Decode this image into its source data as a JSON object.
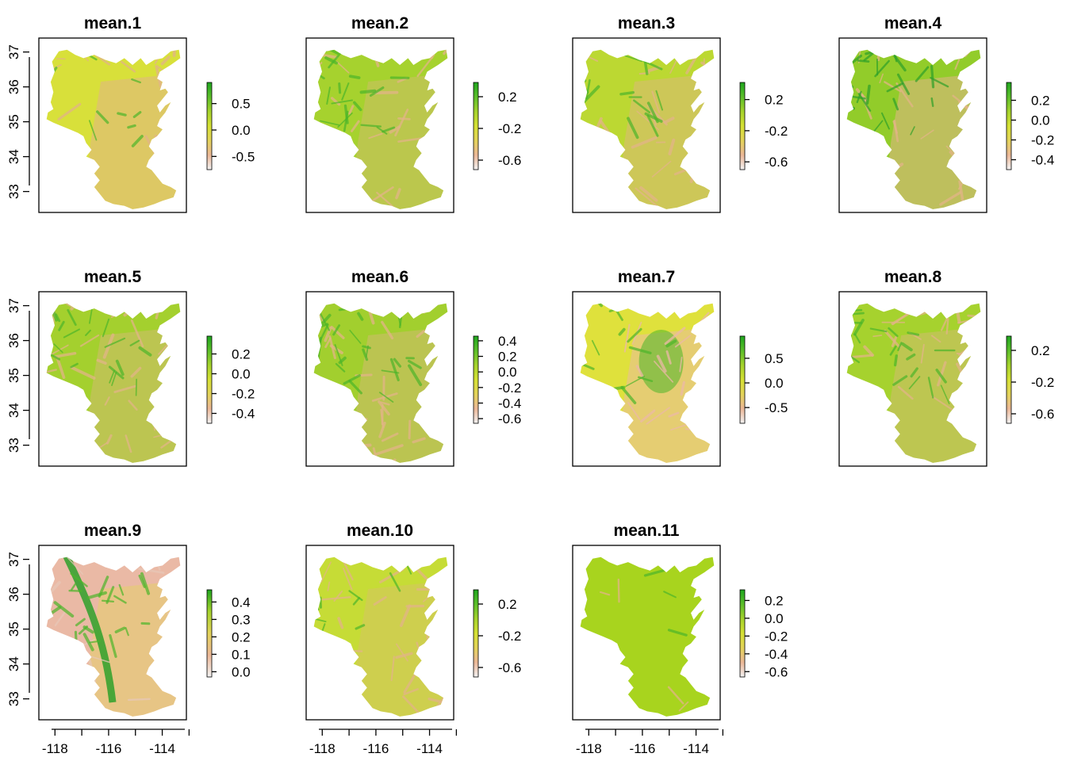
{
  "chart_data": {
    "type": "heatmap",
    "panel_layout": "3 rows x 4 columns",
    "shared_y_axis": {
      "ticks": [
        33,
        34,
        35,
        36,
        37
      ],
      "range": [
        32.4,
        37.4
      ]
    },
    "shared_x_axis": {
      "ticks": [
        -118,
        -116,
        -114
      ],
      "range": [
        -118.6,
        -113.1
      ]
    },
    "panels": [
      {
        "title": "mean.1",
        "legend_ticks": [
          "0.5",
          "0.0",
          "-0.5"
        ],
        "legend_range": [
          -0.75,
          0.9
        ],
        "tick_values": [
          0.5,
          0.0,
          -0.5
        ],
        "base_color": "#d8e03a",
        "tone": "mostly yellow, tan in east"
      },
      {
        "title": "mean.2",
        "legend_ticks": [
          "0.2",
          "-0.2",
          "-0.6"
        ],
        "legend_range": [
          -0.72,
          0.38
        ],
        "tick_values": [
          0.2,
          -0.2,
          -0.6
        ],
        "base_color": "#a6d22e",
        "tone": "green-yellow with tan streaks"
      },
      {
        "title": "mean.3",
        "legend_ticks": [
          "0.2",
          "-0.2",
          "-0.6"
        ],
        "legend_range": [
          -0.7,
          0.42
        ],
        "tick_values": [
          0.2,
          -0.2,
          -0.6
        ],
        "base_color": "#bcd832",
        "tone": "yellow-green, tan in south"
      },
      {
        "title": "mean.4",
        "legend_ticks": [
          "0.2",
          "0.0",
          "-0.2",
          "-0.4"
        ],
        "legend_range": [
          -0.5,
          0.38
        ],
        "tick_values": [
          0.2,
          0.0,
          -0.2,
          -0.4
        ],
        "base_color": "#92cc2a",
        "tone": "green north, tan south-east"
      },
      {
        "title": "mean.5",
        "legend_ticks": [
          "0.2",
          "0.0",
          "-0.2",
          "-0.4"
        ],
        "legend_range": [
          -0.5,
          0.38
        ],
        "tick_values": [
          0.2,
          0.0,
          -0.2,
          -0.4
        ],
        "base_color": "#a4d02e",
        "tone": "green-yellow mixed"
      },
      {
        "title": "mean.6",
        "legend_ticks": [
          "0.4",
          "0.2",
          "0.0",
          "-0.2",
          "-0.4",
          "-0.6"
        ],
        "legend_range": [
          -0.66,
          0.46
        ],
        "tick_values": [
          0.4,
          0.2,
          0.0,
          -0.2,
          -0.4,
          -0.6
        ],
        "base_color": "#a2cf2e",
        "tone": "green-yellow with tan streaks"
      },
      {
        "title": "mean.7",
        "legend_ticks": [
          "0.5",
          "0.0",
          "-0.5"
        ],
        "legend_range": [
          -0.82,
          0.95
        ],
        "tick_values": [
          0.5,
          0.0,
          -0.5
        ],
        "base_color": "#dfe13c",
        "tone": "yellow, green center, pink south"
      },
      {
        "title": "mean.8",
        "legend_ticks": [
          "0.2",
          "-0.2",
          "-0.6"
        ],
        "legend_range": [
          -0.72,
          0.38
        ],
        "tick_values": [
          0.2,
          -0.2,
          -0.6
        ],
        "base_color": "#a6d22e",
        "tone": "green-yellow with tan streaks"
      },
      {
        "title": "mean.9",
        "legend_ticks": [
          "0.4",
          "0.3",
          "0.2",
          "0.1",
          "0.0"
        ],
        "legend_range": [
          -0.03,
          0.47
        ],
        "tick_values": [
          0.4,
          0.3,
          0.2,
          0.1,
          0.0
        ],
        "base_color": "#eab9a5",
        "tone": "pink overall, green river band"
      },
      {
        "title": "mean.10",
        "legend_ticks": [
          "0.2",
          "-0.2",
          "-0.6"
        ],
        "legend_range": [
          -0.72,
          0.38
        ],
        "tick_values": [
          0.2,
          -0.2,
          -0.6
        ],
        "base_color": "#c6dc36",
        "tone": "yellow-green with tan streaks"
      },
      {
        "title": "mean.11",
        "legend_ticks": [
          "0.2",
          "0.0",
          "-0.2",
          "-0.4",
          "-0.6"
        ],
        "legend_range": [
          -0.66,
          0.32
        ],
        "tick_values": [
          0.2,
          0.0,
          -0.2,
          -0.4,
          -0.6
        ],
        "base_color": "#a8d41e",
        "tone": "uniform green, tan south-west"
      }
    ]
  },
  "colors": {
    "scale": [
      "#f2f2f2",
      "#ebb797",
      "#e3d35a",
      "#d5e034",
      "#a5d22c",
      "#5cbe2a",
      "#1ea51e"
    ],
    "tan": "#e2b487",
    "pink": "#ebb9a7",
    "green": "#4cb62a",
    "dark_green": "#2ea02a",
    "yellow": "#e2e13c"
  }
}
